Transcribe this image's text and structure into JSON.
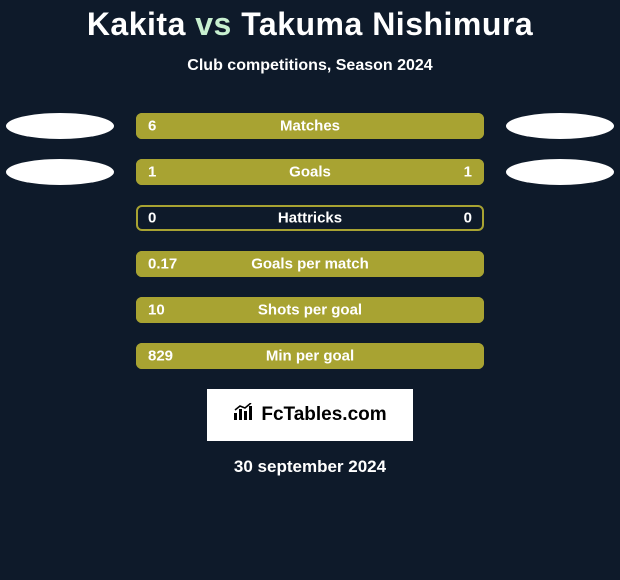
{
  "colors": {
    "background": "#0e1a2a",
    "bar_border": "#a8a332",
    "bar_fill": "#a8a332",
    "ellipse_left": "#ffffff",
    "ellipse_right": "#ffffff",
    "title_accent": "#c8f0d0",
    "text": "#ffffff",
    "logo_bg": "#ffffff",
    "logo_text": "#000000"
  },
  "header": {
    "player1": "Kakita",
    "vs": "vs",
    "player2": "Takuma Nishimura",
    "subtitle": "Club competitions, Season 2024"
  },
  "chart": {
    "bar_width_pct": 100,
    "rows": [
      {
        "label": "Matches",
        "left_val": "6",
        "right_val": "",
        "left_pct": 100,
        "right_pct": 0,
        "show_left_ellipse": true,
        "show_right_ellipse": true
      },
      {
        "label": "Goals",
        "left_val": "1",
        "right_val": "1",
        "left_pct": 50,
        "right_pct": 50,
        "show_left_ellipse": true,
        "show_right_ellipse": true
      },
      {
        "label": "Hattricks",
        "left_val": "0",
        "right_val": "0",
        "left_pct": 0,
        "right_pct": 0,
        "show_left_ellipse": false,
        "show_right_ellipse": false
      },
      {
        "label": "Goals per match",
        "left_val": "0.17",
        "right_val": "",
        "left_pct": 100,
        "right_pct": 0,
        "show_left_ellipse": false,
        "show_right_ellipse": false
      },
      {
        "label": "Shots per goal",
        "left_val": "10",
        "right_val": "",
        "left_pct": 100,
        "right_pct": 0,
        "show_left_ellipse": false,
        "show_right_ellipse": false
      },
      {
        "label": "Min per goal",
        "left_val": "829",
        "right_val": "",
        "left_pct": 100,
        "right_pct": 0,
        "show_left_ellipse": false,
        "show_right_ellipse": false
      }
    ]
  },
  "footer": {
    "logo_text": "FcTables.com",
    "date": "30 september 2024"
  }
}
